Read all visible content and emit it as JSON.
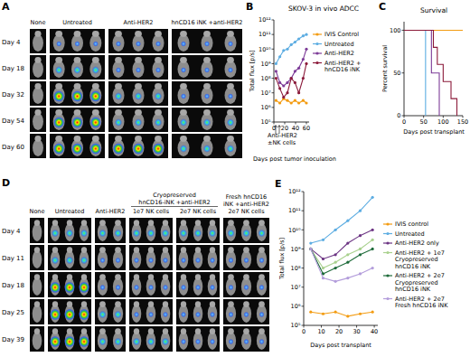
{
  "image_panels": [
    {
      "label": "A",
      "columns": [
        "None",
        "Untreated",
        "Anti-HER2",
        "hnCD16 iNK +anti-HER2"
      ],
      "rows": [
        "Day 4",
        "Day 18",
        "Day 32",
        "Day 54",
        "Day 60"
      ]
    },
    {
      "label": "D",
      "columns": [
        "None",
        "Untreated",
        "Anti-HER2",
        "1e7 NK cells",
        "2e7 NK cells",
        "Fresh hnCD16 iNK +anti-HER2 2e7 NK cells"
      ],
      "column_group": "Cryopreserved hnCD16-iNK +anti-HER2",
      "rows": [
        "Day 4",
        "Day 11",
        "Day 18",
        "Day 25",
        "Day 39"
      ]
    }
  ],
  "chart_data": [
    {
      "label": "B",
      "type": "line",
      "title": "SKOV-3 in vivo ADCC",
      "y_label": "Total flux [p/s]",
      "x_label": "Days post tumor inoculation",
      "annotation": "Anti-HER2 ±NK cells",
      "log": "y",
      "marker": "circle",
      "legend": "right",
      "x": [
        4,
        11,
        18,
        25,
        32,
        39,
        46,
        54,
        60
      ],
      "xlim": [
        0,
        65
      ],
      "xticks": [
        0,
        20,
        40,
        60
      ],
      "ylim": [
        100000.0,
        1000000000000.0
      ],
      "yticks": [
        {
          "value": 100000.0,
          "label": "10⁵"
        },
        {
          "value": 1000000.0,
          "label": "10⁶"
        },
        {
          "value": 10000000.0,
          "label": "10⁷"
        },
        {
          "value": 100000000.0,
          "label": "10⁸"
        },
        {
          "value": 1000000000.0,
          "label": "10⁹"
        },
        {
          "value": 10000000000.0,
          "label": "10¹⁰"
        },
        {
          "value": 100000000000.0,
          "label": "10¹¹"
        },
        {
          "value": 1000000000000.0,
          "label": "10¹²"
        }
      ],
      "series": [
        {
          "name": "IVIS Control",
          "color": "#f39c12",
          "values": [
            3000000.0,
            2000000.0,
            4000000.0,
            3000000.0,
            2000000.0,
            3000000.0,
            2000000.0,
            3000000.0,
            2000000.0
          ]
        },
        {
          "name": "Untreated",
          "color": "#5dade2",
          "values": [
            1000000000.0,
            3000000000.0,
            8000000000.0,
            10000000000.0,
            20000000000.0,
            30000000000.0,
            50000000000.0,
            80000000000.0,
            100000000000.0
          ]
        },
        {
          "name": "Anti-HER2",
          "color": "#7d3c98",
          "values": [
            300000000.0,
            50000000.0,
            30000000.0,
            50000000.0,
            100000000.0,
            300000000.0,
            500000000.0,
            2000000000.0,
            10000000000.0
          ]
        },
        {
          "name": "Anti-HER2 + hnCD16 iNK",
          "color": "#8b1a3a",
          "values": [
            100000000.0,
            20000000.0,
            5000000.0,
            10000000.0,
            100000000.0,
            50000000.0,
            10000000.0,
            100000000.0,
            1000000000.0
          ]
        }
      ]
    },
    {
      "label": "C",
      "type": "line",
      "title": "Survival",
      "y_label": "Percent survival",
      "x_label": "Days post transplant",
      "line_style": "step",
      "xlim": [
        0,
        150
      ],
      "xticks": [
        0,
        50,
        100,
        150
      ],
      "ylim": [
        0,
        110
      ],
      "yticks": [
        0,
        50,
        100
      ],
      "series": [
        {
          "name": "IVIS Control",
          "color": "#f39c12",
          "x": [
            0,
            150
          ],
          "values": [
            100,
            100
          ]
        },
        {
          "name": "Untreated",
          "color": "#5dade2",
          "x": [
            0,
            55
          ],
          "values": [
            100,
            0
          ]
        },
        {
          "name": "Anti-HER2",
          "color": "#7d3c98",
          "x": [
            0,
            70,
            90
          ],
          "values": [
            100,
            50,
            0
          ]
        },
        {
          "name": "Anti-HER2 + hnCD16 iNK",
          "color": "#8b1a3a",
          "x": [
            0,
            75,
            85,
            100,
            120,
            135
          ],
          "values": [
            100,
            80,
            60,
            40,
            20,
            0
          ]
        }
      ]
    },
    {
      "label": "E",
      "type": "line",
      "y_label": "Total flux [p/s]",
      "x_label": "Days post transplant",
      "log": "y",
      "marker": "circle",
      "legend": "right",
      "x": [
        4,
        11,
        18,
        25,
        32,
        39
      ],
      "xlim": [
        0,
        42
      ],
      "xticks": [
        0,
        10,
        20,
        30,
        40
      ],
      "ylim": [
        100000.0,
        1000000000000.0
      ],
      "yticks": [
        {
          "value": 100000.0,
          "label": "10⁵"
        },
        {
          "value": 1000000.0,
          "label": "10⁶"
        },
        {
          "value": 10000000.0,
          "label": "10⁷"
        },
        {
          "value": 100000000.0,
          "label": "10⁸"
        },
        {
          "value": 1000000000.0,
          "label": "10⁹"
        },
        {
          "value": 10000000000.0,
          "label": "10¹⁰"
        },
        {
          "value": 100000000000.0,
          "label": "10¹¹"
        },
        {
          "value": 1000000000000.0,
          "label": "10¹²"
        }
      ],
      "series": [
        {
          "name": "IVIS control",
          "color": "#f39c12",
          "values": [
            500000.0,
            400000.0,
            500000.0,
            300000.0,
            400000.0,
            500000.0
          ]
        },
        {
          "name": "Untreated",
          "color": "#5dade2",
          "values": [
            2000000000.0,
            3000000000.0,
            10000000000.0,
            30000000000.0,
            100000000000.0,
            500000000000.0
          ]
        },
        {
          "name": "Anti-HER2 only",
          "color": "#6c3483",
          "values": [
            1000000000.0,
            300000000.0,
            500000000.0,
            2000000000.0,
            5000000000.0,
            10000000000.0
          ]
        },
        {
          "name": "Anti-HER2 + 1e7 Cryopreserved hnCD16 iNK",
          "color": "#a9d18e",
          "values": [
            1000000000.0,
            100000000.0,
            200000000.0,
            500000000.0,
            1000000000.0,
            3000000000.0
          ]
        },
        {
          "name": "Anti-HER2 + 2e7 Cryopreserved hnCD16 iNK",
          "color": "#1e6b3a",
          "values": [
            1000000000.0,
            50000000.0,
            100000000.0,
            200000000.0,
            500000000.0,
            1000000000.0
          ]
        },
        {
          "name": "Anti-HER2 + 2e7 Fresh hnCD16 iNK",
          "color": "#b39ddb",
          "values": [
            1000000000.0,
            30000000.0,
            20000000.0,
            30000000.0,
            50000000.0,
            100000000.0
          ]
        }
      ]
    }
  ]
}
